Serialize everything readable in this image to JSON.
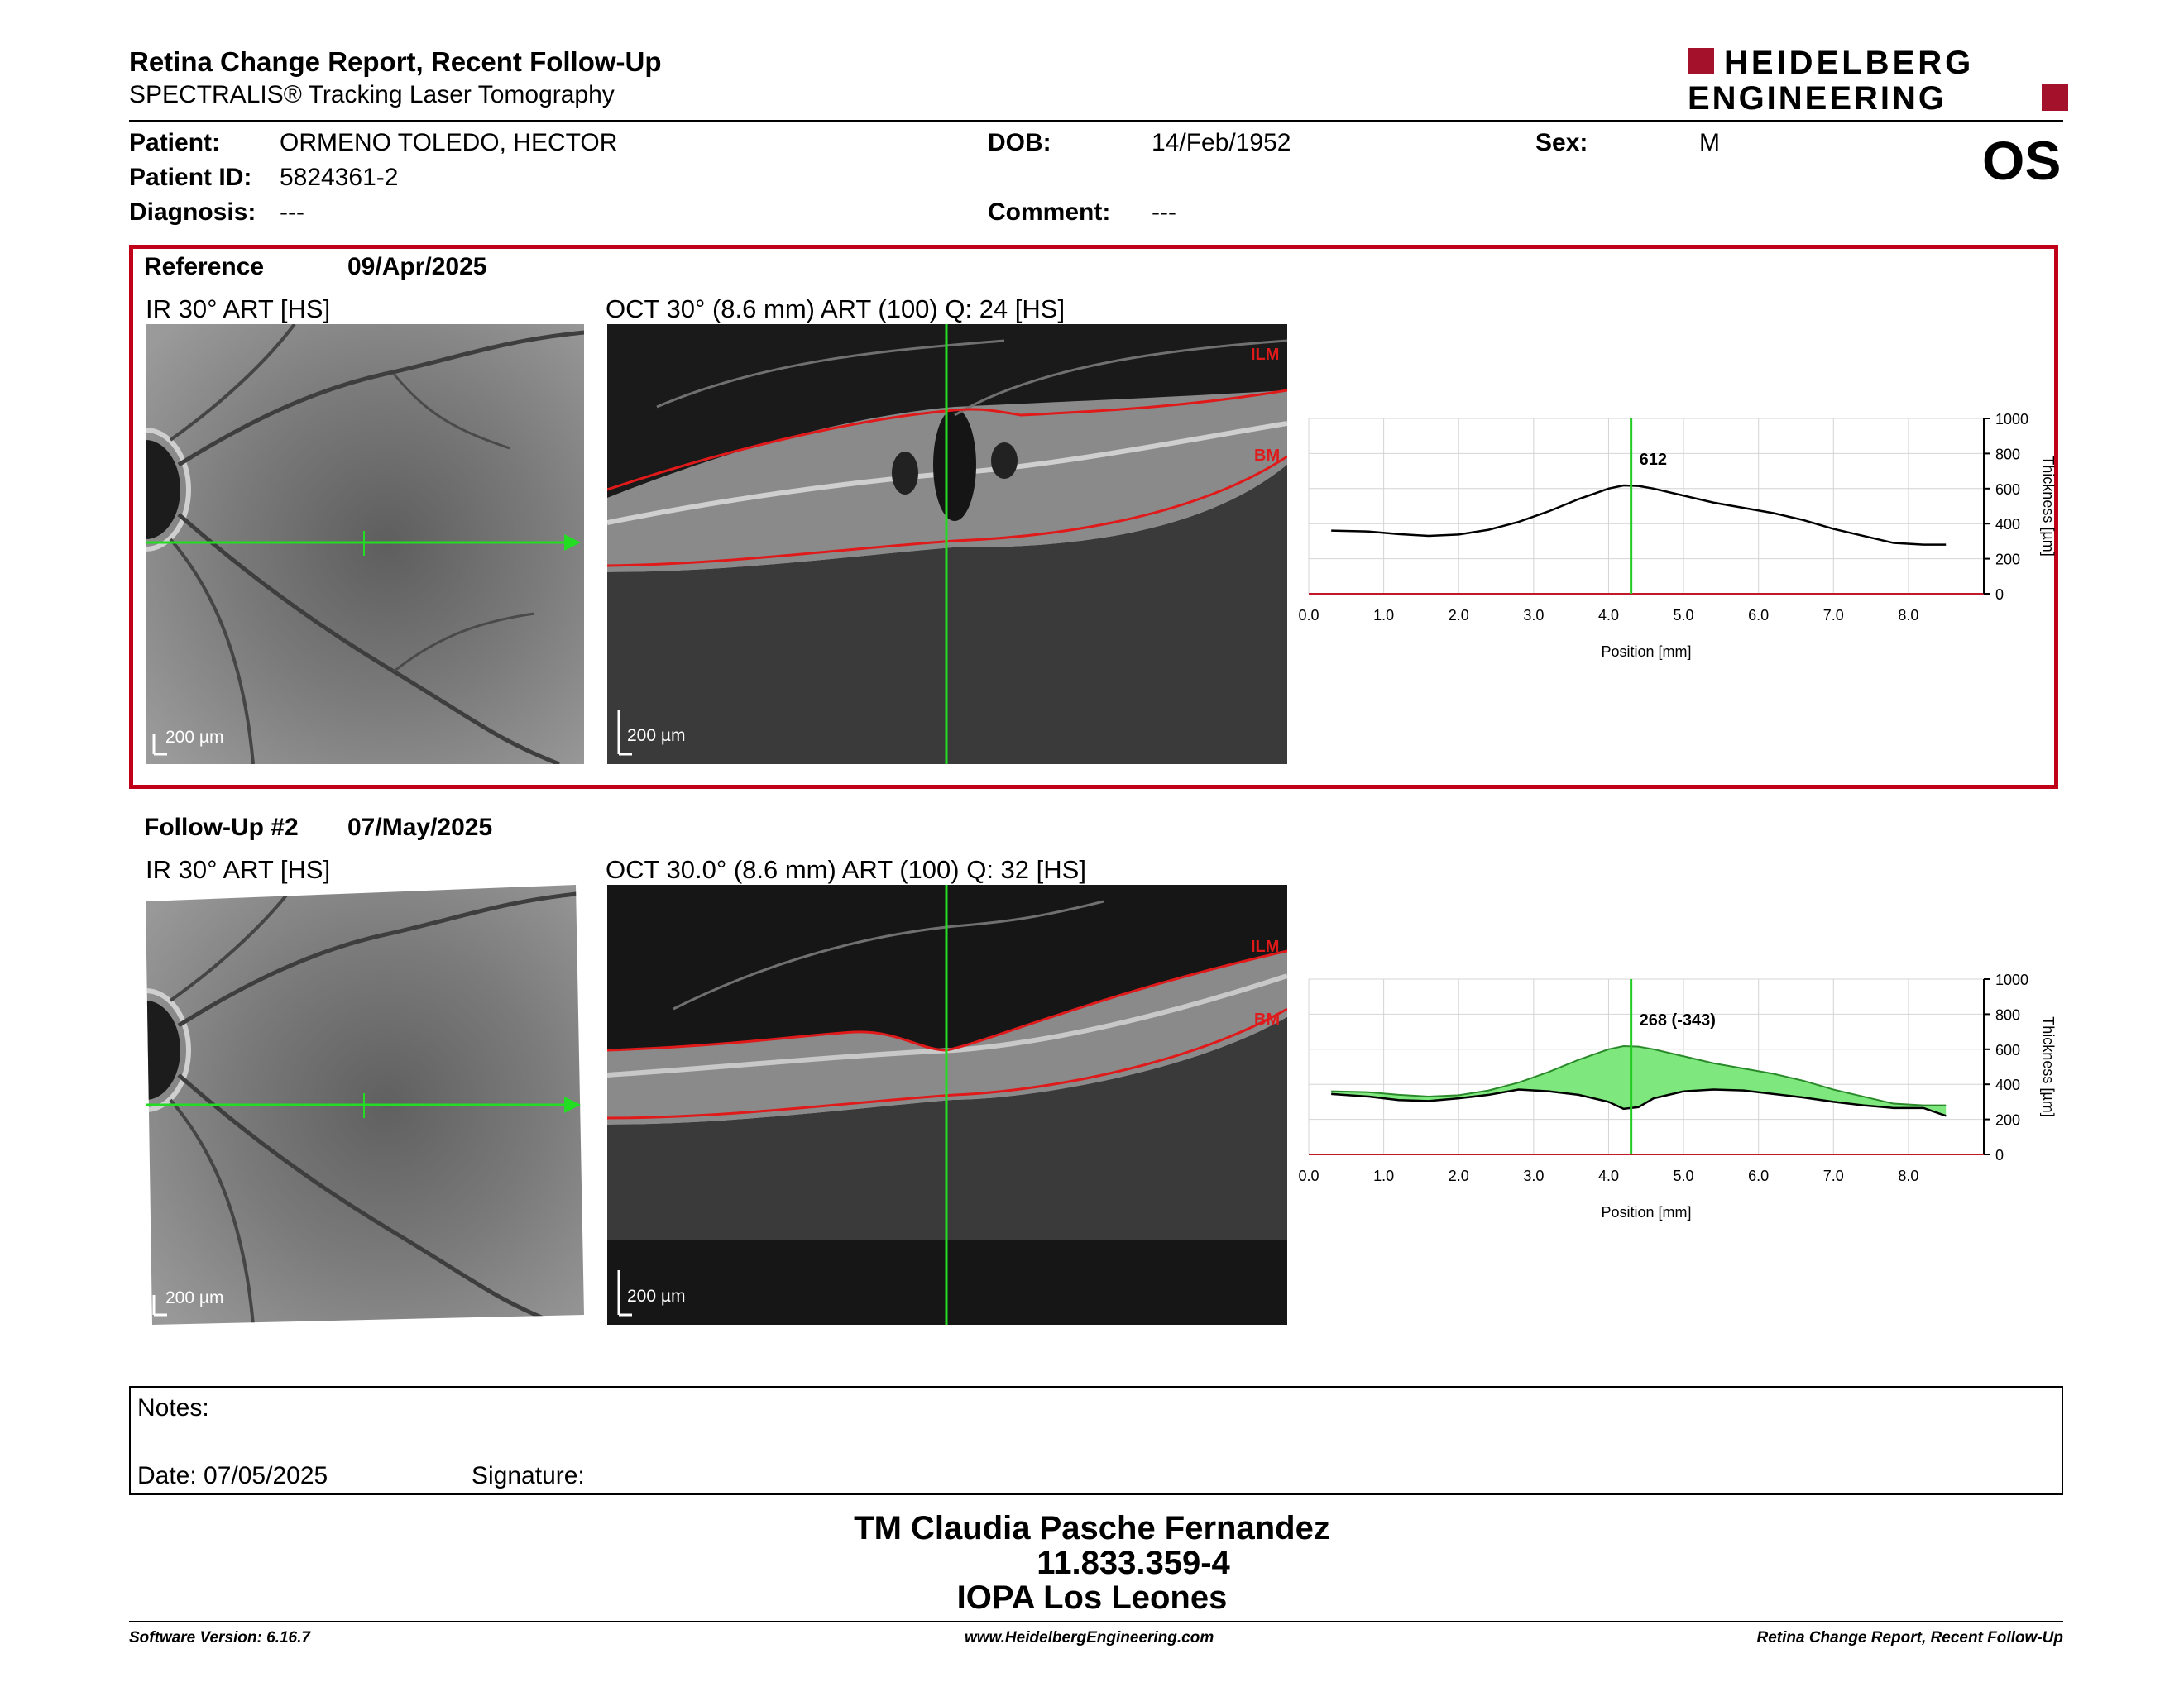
{
  "header": {
    "title": "Retina Change Report, Recent Follow-Up",
    "subtitle": "SPECTRALIS® Tracking Laser Tomography",
    "logo_line1": "HEIDELBERG",
    "logo_line2": "ENGINEERING",
    "logo_color": "#a3122a"
  },
  "patient": {
    "patient_label": "Patient:",
    "patient_value": "ORMENO TOLEDO, HECTOR",
    "id_label": "Patient ID:",
    "id_value": "5824361-2",
    "diagnosis_label": "Diagnosis:",
    "diagnosis_value": "---",
    "dob_label": "DOB:",
    "dob_value": "14/Feb/1952",
    "comment_label": "Comment:",
    "comment_value": "---",
    "sex_label": "Sex:",
    "sex_value": "M",
    "eye": "OS"
  },
  "reference": {
    "label": "Reference",
    "date": "09/Apr/2025",
    "ir_caption": "IR 30° ART [HS]",
    "oct_caption": "OCT 30° (8.6 mm) ART (100) Q: 24 [HS]",
    "ir_scale": "200 µm",
    "oct_scale": "200 µm",
    "ilm_label": "ILM",
    "bm_label": "BM",
    "box_color": "#c00018"
  },
  "followup": {
    "label": "Follow-Up #2",
    "date": "07/May/2025",
    "ir_caption": "IR 30° ART [HS]",
    "oct_caption": "OCT 30.0° (8.6 mm) ART (100) Q: 32 [HS]",
    "ir_scale": "200 µm",
    "oct_scale": "200 µm",
    "ilm_label": "ILM",
    "bm_label": "BM"
  },
  "chart_data": [
    {
      "type": "line",
      "xlabel": "Position [mm]",
      "ylabel": "Thickness [µm]",
      "xlim": [
        0,
        8.6
      ],
      "ylim": [
        0,
        1000
      ],
      "xticks": [
        "0.0",
        "1.0",
        "2.0",
        "3.0",
        "4.0",
        "5.0",
        "6.0",
        "7.0",
        "8.0"
      ],
      "yticks": [
        "0",
        "200",
        "400",
        "600",
        "800",
        "1000"
      ],
      "grid": true,
      "cursor_x": 4.3,
      "cursor_label": "612",
      "series": [
        {
          "x": [
            0.3,
            0.8,
            1.2,
            1.6,
            2.0,
            2.4,
            2.8,
            3.2,
            3.6,
            4.0,
            4.2,
            4.4,
            4.6,
            5.0,
            5.4,
            5.8,
            6.2,
            6.6,
            7.0,
            7.4,
            7.8,
            8.2,
            8.5
          ],
          "y": [
            360,
            355,
            340,
            330,
            338,
            365,
            410,
            470,
            540,
            600,
            618,
            615,
            600,
            560,
            520,
            490,
            460,
            420,
            370,
            330,
            290,
            280,
            280
          ]
        }
      ],
      "colors": {
        "line": "#000000",
        "cursor": "#22cc22",
        "fill": "#7ee87e"
      }
    },
    {
      "type": "area",
      "xlabel": "Position [mm]",
      "ylabel": "Thickness [µm]",
      "xlim": [
        0,
        8.6
      ],
      "ylim": [
        0,
        1000
      ],
      "xticks": [
        "0.0",
        "1.0",
        "2.0",
        "3.0",
        "4.0",
        "5.0",
        "6.0",
        "7.0",
        "8.0"
      ],
      "yticks": [
        "0",
        "200",
        "400",
        "600",
        "800",
        "1000"
      ],
      "grid": true,
      "cursor_x": 4.3,
      "cursor_label": "268 (-343)",
      "series": [
        {
          "x": [
            0.3,
            0.8,
            1.2,
            1.6,
            2.0,
            2.4,
            2.8,
            3.2,
            3.6,
            4.0,
            4.2,
            4.4,
            4.6,
            5.0,
            5.4,
            5.8,
            6.2,
            6.6,
            7.0,
            7.4,
            7.8,
            8.2,
            8.5
          ],
          "y": [
            360,
            355,
            340,
            330,
            338,
            365,
            410,
            470,
            540,
            600,
            618,
            615,
            600,
            560,
            520,
            490,
            460,
            420,
            370,
            330,
            290,
            280,
            280
          ]
        },
        {
          "x": [
            0.3,
            0.8,
            1.2,
            1.6,
            2.0,
            2.4,
            2.8,
            3.2,
            3.6,
            4.0,
            4.2,
            4.4,
            4.6,
            5.0,
            5.4,
            5.8,
            6.2,
            6.6,
            7.0,
            7.4,
            7.8,
            8.2,
            8.5
          ],
          "y": [
            345,
            330,
            310,
            305,
            320,
            340,
            370,
            360,
            340,
            300,
            260,
            270,
            320,
            360,
            370,
            365,
            345,
            325,
            300,
            280,
            265,
            265,
            220
          ]
        }
      ],
      "colors": {
        "line": "#000000",
        "cursor": "#22cc22",
        "fill": "#7ee87e"
      }
    }
  ],
  "notes": {
    "notes_label": "Notes:",
    "date_label": "Date: 07/05/2025",
    "signature_label": "Signature:"
  },
  "signature": {
    "name": "TM Claudia Pasche Fernandez",
    "id": "11.833.359-4",
    "place": "IOPA Los Leones"
  },
  "footer": {
    "left": "Software Version: 6.16.7",
    "center": "www.HeidelbergEngineering.com",
    "right": "Retina Change Report, Recent Follow-Up"
  }
}
